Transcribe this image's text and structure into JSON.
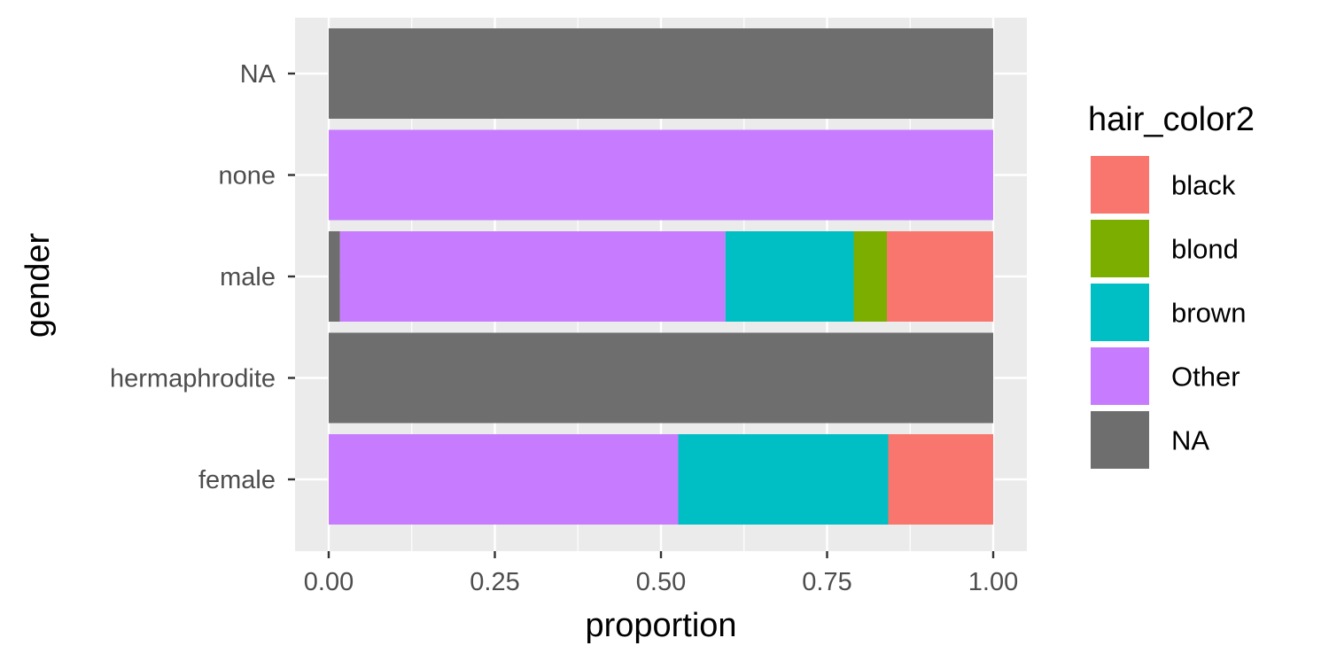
{
  "chart_data": {
    "type": "bar",
    "orientation": "horizontal",
    "stacked": true,
    "title": "",
    "xlabel": "proportion",
    "ylabel": "gender",
    "xlim": [
      0,
      1
    ],
    "xticks": [
      0,
      0.25,
      0.5,
      0.75,
      1.0
    ],
    "xtick_labels": [
      "0.00",
      "0.25",
      "0.50",
      "0.75",
      "1.00"
    ],
    "grid": true,
    "legend_position": "right",
    "legend_title": "hair_color2",
    "categories": [
      "female",
      "hermaphrodite",
      "male",
      "none",
      "NA"
    ],
    "series": [
      {
        "name": "black",
        "color": "#F8766D",
        "values": [
          0.158,
          0,
          0.16,
          0,
          0
        ]
      },
      {
        "name": "blond",
        "color": "#7CAE00",
        "values": [
          0,
          0,
          0.05,
          0,
          0
        ]
      },
      {
        "name": "brown",
        "color": "#00BFC4",
        "values": [
          0.316,
          0,
          0.193,
          0,
          0
        ]
      },
      {
        "name": "Other",
        "color": "#C77CFF",
        "values": [
          0.526,
          0,
          0.58,
          1,
          0
        ]
      },
      {
        "name": "NA",
        "color": "#6E6E6E",
        "values": [
          0,
          1,
          0.017,
          0,
          1
        ]
      }
    ]
  }
}
